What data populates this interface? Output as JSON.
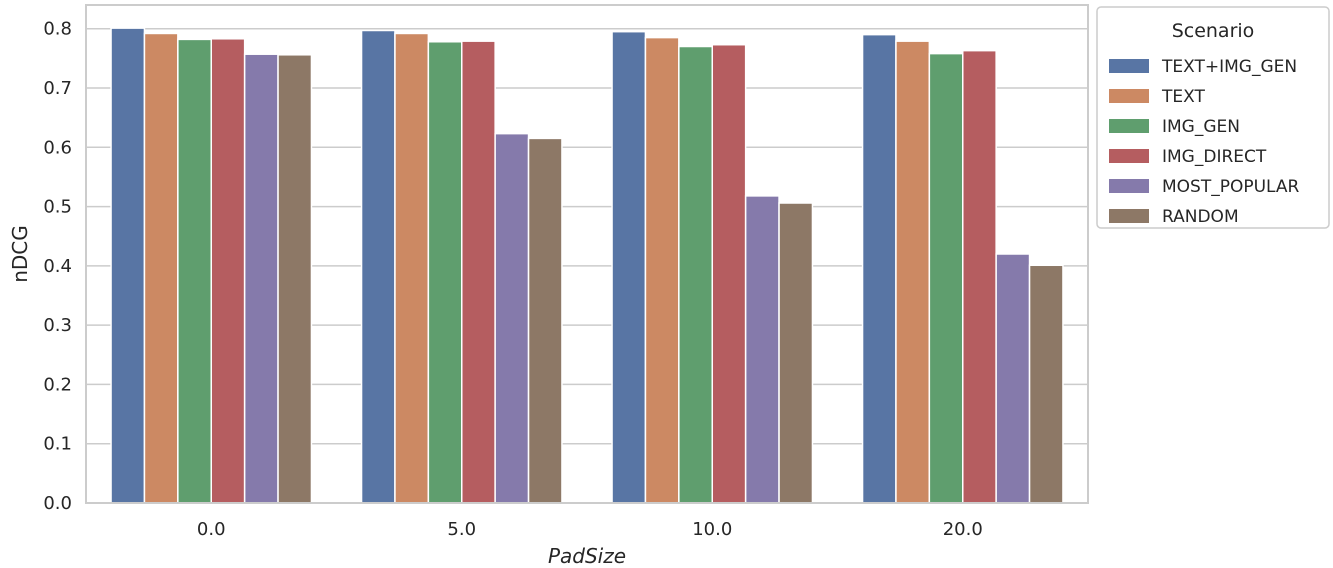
{
  "chart_data": {
    "type": "bar",
    "xlabel": "PadSize",
    "ylabel": "nDCG",
    "categories": [
      "0.0",
      "5.0",
      "10.0",
      "20.0"
    ],
    "ylim": [
      0,
      0.84
    ],
    "yticks": [
      "0.0",
      "0.1",
      "0.2",
      "0.3",
      "0.4",
      "0.5",
      "0.6",
      "0.7",
      "0.8"
    ],
    "grid": true,
    "legend": {
      "title": "Scenario",
      "position": "outside-top-right"
    },
    "series": [
      {
        "name": "TEXT+IMG_GEN",
        "color": "#5875a4",
        "values": [
          0.801,
          0.797,
          0.795,
          0.79
        ]
      },
      {
        "name": "TEXT",
        "color": "#cc8963",
        "values": [
          0.792,
          0.792,
          0.785,
          0.779
        ]
      },
      {
        "name": "IMG_GEN",
        "color": "#5f9e6e",
        "values": [
          0.782,
          0.778,
          0.77,
          0.758
        ]
      },
      {
        "name": "IMG_DIRECT",
        "color": "#b55d60",
        "values": [
          0.783,
          0.779,
          0.773,
          0.763
        ]
      },
      {
        "name": "MOST_POPULAR",
        "color": "#857aab",
        "values": [
          0.757,
          0.623,
          0.518,
          0.42
        ]
      },
      {
        "name": "RANDOM",
        "color": "#8d7866",
        "values": [
          0.756,
          0.615,
          0.506,
          0.401
        ]
      }
    ]
  }
}
